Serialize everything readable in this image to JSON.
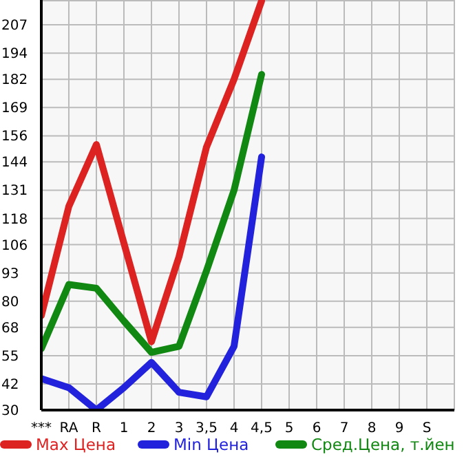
{
  "chart_data": {
    "type": "line",
    "categories": [
      "***",
      "RA",
      "R",
      "1",
      "2",
      "3",
      "3,5",
      "4",
      "4,5",
      "5",
      "6",
      "7",
      "8",
      "9",
      "S",
      null
    ],
    "series": [
      {
        "name": "Max Цена",
        "color": "#dd2222",
        "values": [
          73.4,
          123.6,
          152,
          106.7,
          61.4,
          100.4,
          150.9,
          182,
          218,
          null,
          null,
          null,
          null,
          null,
          null,
          null
        ]
      },
      {
        "name": "Min Цена",
        "color": "#2222dd",
        "values": [
          44.5,
          40.3,
          30,
          40.3,
          51.9,
          38.2,
          36.1,
          59.3,
          146.3,
          null,
          null,
          null,
          null,
          null,
          null,
          null
        ]
      },
      {
        "name": "Сред.Цена, т.йен",
        "color": "#118811",
        "values": [
          58.2,
          87.7,
          86,
          70.9,
          56.5,
          59.3,
          94,
          131,
          184.2,
          null,
          null,
          null,
          null,
          null,
          null,
          null
        ]
      }
    ],
    "ylim": [
      30,
      218.4
    ],
    "yticks": [
      30,
      42,
      55,
      68,
      80,
      93,
      106,
      118,
      131,
      144,
      156,
      169,
      182,
      194,
      207
    ],
    "grid": true,
    "legend": "bottom",
    "marker": "none",
    "line_style": "solid"
  }
}
